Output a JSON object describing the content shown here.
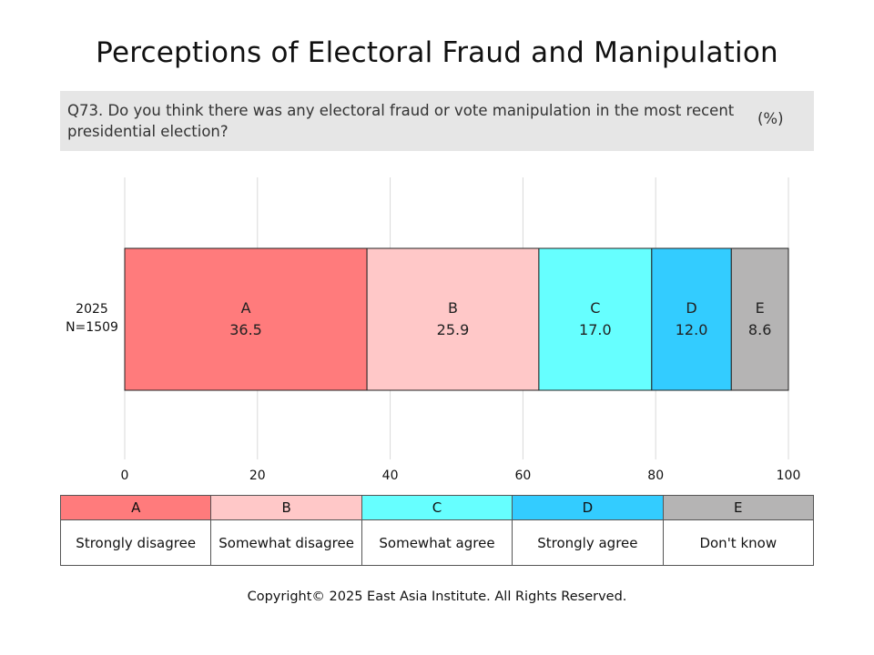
{
  "title": "Perceptions of Electoral Fraud and Manipulation",
  "question": {
    "text": "Q73. Do you think there was any electoral fraud or vote manipulation in the most recent presidential election?",
    "unit": "(%)"
  },
  "row_label": {
    "year": "2025",
    "n": "N=1509"
  },
  "chart_data": {
    "type": "bar",
    "orientation": "horizontal",
    "stacked": true,
    "categories": [
      "2025 N=1509"
    ],
    "series": [
      {
        "name": "A",
        "values": [
          36.5
        ],
        "color": "#ff7b7c"
      },
      {
        "name": "B",
        "values": [
          25.9
        ],
        "color": "#ffc8c8"
      },
      {
        "name": "C",
        "values": [
          17.0
        ],
        "color": "#66ffff"
      },
      {
        "name": "D",
        "values": [
          12.0
        ],
        "color": "#33ccff"
      },
      {
        "name": "E",
        "values": [
          8.6
        ],
        "color": "#b5b4b4"
      }
    ],
    "xlim": [
      0,
      100
    ],
    "xticks": [
      0,
      20,
      40,
      60,
      80,
      100
    ],
    "grid": true
  },
  "legend": [
    {
      "key": "A",
      "label": "Strongly disagree",
      "color": "#ff7b7c"
    },
    {
      "key": "B",
      "label": "Somewhat disagree",
      "color": "#ffc8c8"
    },
    {
      "key": "C",
      "label": "Somewhat agree",
      "color": "#66ffff"
    },
    {
      "key": "D",
      "label": "Strongly agree",
      "color": "#33ccff"
    },
    {
      "key": "E",
      "label": "Don't know",
      "color": "#b5b4b4"
    }
  ],
  "copyright": "Copyright© 2025 East Asia Institute. All Rights Reserved."
}
